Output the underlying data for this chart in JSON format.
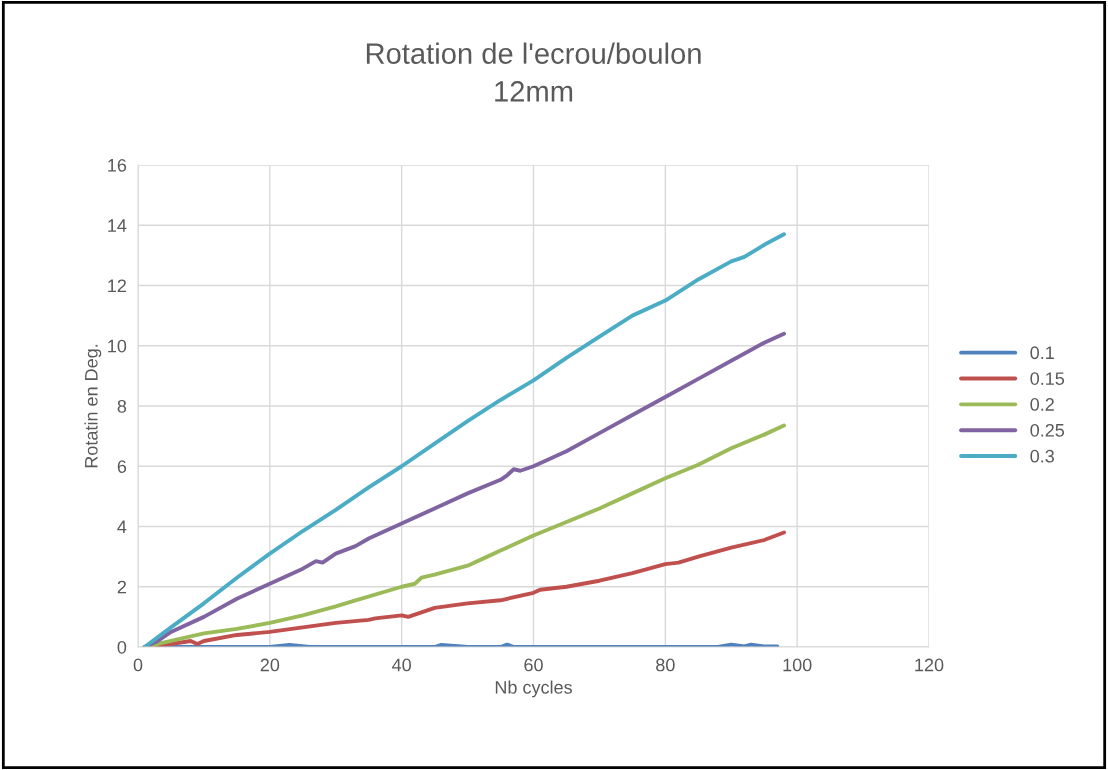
{
  "chart_data": {
    "type": "line",
    "title": "Rotation de l'ecrou/boulon\n12mm",
    "xlabel": "Nb cycles",
    "ylabel": "Rotatin en Deg.",
    "xlim": [
      0,
      120
    ],
    "xticks": [
      0,
      20,
      40,
      60,
      80,
      100,
      120
    ],
    "ylim": [
      0,
      16
    ],
    "yticks": [
      0,
      2,
      4,
      6,
      8,
      10,
      12,
      14,
      16
    ],
    "grid": true,
    "legend": "right",
    "marker": "none",
    "line_style": "solid",
    "series": [
      {
        "name": "0.1",
        "color": "#4f81bd",
        "x": [
          1,
          10,
          20,
          23,
          26,
          40,
          45,
          46,
          50,
          55,
          56,
          57,
          60,
          70,
          80,
          88,
          90,
          92,
          93,
          95,
          97
        ],
        "values": [
          0,
          0,
          0,
          0.07,
          0,
          0,
          0,
          0.07,
          0,
          0,
          0.08,
          0,
          0,
          0,
          0,
          0,
          0.08,
          0.02,
          0.08,
          0.02,
          0.02
        ]
      },
      {
        "name": "0.15",
        "color": "#c0504d",
        "x": [
          1,
          5,
          8,
          9,
          10,
          15,
          20,
          25,
          30,
          35,
          36,
          40,
          41,
          45,
          50,
          55,
          60,
          61,
          65,
          70,
          75,
          80,
          82,
          85,
          90,
          95,
          98
        ],
        "values": [
          0,
          0.1,
          0.2,
          0.1,
          0.2,
          0.4,
          0.5,
          0.65,
          0.8,
          0.9,
          0.95,
          1.05,
          1.0,
          1.3,
          1.45,
          1.55,
          1.8,
          1.9,
          2.0,
          2.2,
          2.45,
          2.75,
          2.8,
          3.0,
          3.3,
          3.55,
          3.8
        ]
      },
      {
        "name": "0.2",
        "color": "#9bbb59",
        "x": [
          1,
          5,
          10,
          15,
          20,
          25,
          30,
          33,
          40,
          42,
          43,
          45,
          50,
          53,
          55,
          60,
          65,
          70,
          75,
          80,
          85,
          90,
          95,
          98
        ],
        "values": [
          0,
          0.2,
          0.45,
          0.6,
          0.8,
          1.05,
          1.35,
          1.55,
          2.0,
          2.1,
          2.3,
          2.4,
          2.7,
          3.0,
          3.2,
          3.7,
          4.15,
          4.6,
          5.1,
          5.6,
          6.05,
          6.6,
          7.05,
          7.35
        ]
      },
      {
        "name": "0.25",
        "color": "#8064a2",
        "x": [
          1,
          3,
          5,
          10,
          15,
          20,
          25,
          27,
          28,
          30,
          33,
          35,
          40,
          45,
          50,
          55,
          56,
          57,
          58,
          60,
          65,
          70,
          75,
          80,
          85,
          90,
          95,
          98
        ],
        "values": [
          0,
          0.2,
          0.5,
          1.0,
          1.6,
          2.1,
          2.6,
          2.85,
          2.8,
          3.1,
          3.35,
          3.6,
          4.1,
          4.6,
          5.1,
          5.55,
          5.7,
          5.9,
          5.85,
          6.0,
          6.5,
          7.1,
          7.7,
          8.3,
          8.9,
          9.5,
          10.1,
          10.4
        ]
      },
      {
        "name": "0.3",
        "color": "#4bacc6",
        "x": [
          1,
          5,
          10,
          15,
          20,
          25,
          30,
          35,
          40,
          45,
          50,
          55,
          60,
          65,
          70,
          75,
          80,
          85,
          90,
          92,
          95,
          98
        ],
        "values": [
          0,
          0.65,
          1.45,
          2.3,
          3.1,
          3.85,
          4.55,
          5.3,
          6.0,
          6.75,
          7.5,
          8.2,
          8.85,
          9.6,
          10.3,
          11.0,
          11.5,
          12.2,
          12.8,
          12.95,
          13.35,
          13.7
        ]
      }
    ]
  }
}
